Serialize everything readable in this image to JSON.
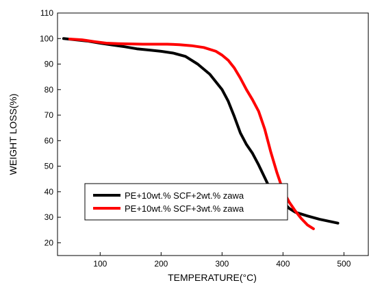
{
  "chart_data": {
    "type": "line",
    "xlabel": "TEMPERATURE(°C)",
    "ylabel": "WEIGHT LOSS(%)",
    "xlim": [
      30,
      540
    ],
    "ylim": [
      15,
      110
    ],
    "xticks": [
      100,
      200,
      300,
      400,
      500
    ],
    "yticks": [
      20,
      30,
      40,
      50,
      60,
      70,
      80,
      90,
      100,
      110
    ],
    "grid": false,
    "legend_position": "lower-center",
    "series": [
      {
        "name": "PE+10wt.% SCF+2wt.% zawa",
        "color": "#000000",
        "x": [
          40,
          60,
          80,
          100,
          120,
          140,
          160,
          180,
          200,
          220,
          240,
          260,
          280,
          300,
          310,
          320,
          330,
          340,
          350,
          360,
          370,
          380,
          390,
          400,
          410,
          420,
          440,
          460,
          480,
          490
        ],
        "y": [
          100,
          99.5,
          99,
          98.2,
          97.5,
          96.8,
          96,
          95.5,
          95,
          94.3,
          93,
          90,
          86,
          80,
          75.5,
          69.5,
          63,
          58.5,
          55,
          50.5,
          45.5,
          40.5,
          38,
          36,
          33.5,
          32,
          30.5,
          29.2,
          28.2,
          27.7
        ]
      },
      {
        "name": "PE+10wt.% SCF+3wt.% zawa",
        "color": "#ff0000",
        "x": [
          50,
          70,
          90,
          110,
          130,
          150,
          170,
          190,
          210,
          230,
          250,
          270,
          290,
          300,
          310,
          320,
          330,
          340,
          350,
          360,
          370,
          380,
          390,
          400,
          410,
          420,
          430,
          440,
          450
        ],
        "y": [
          99.8,
          99.5,
          98.8,
          98.2,
          98,
          97.9,
          97.8,
          97.8,
          97.8,
          97.6,
          97.2,
          96.5,
          95,
          93.5,
          91.5,
          88.5,
          84.5,
          80,
          76,
          71.5,
          64.5,
          55.5,
          47.5,
          40.5,
          36,
          32.5,
          29.5,
          27,
          25.5
        ]
      }
    ]
  }
}
